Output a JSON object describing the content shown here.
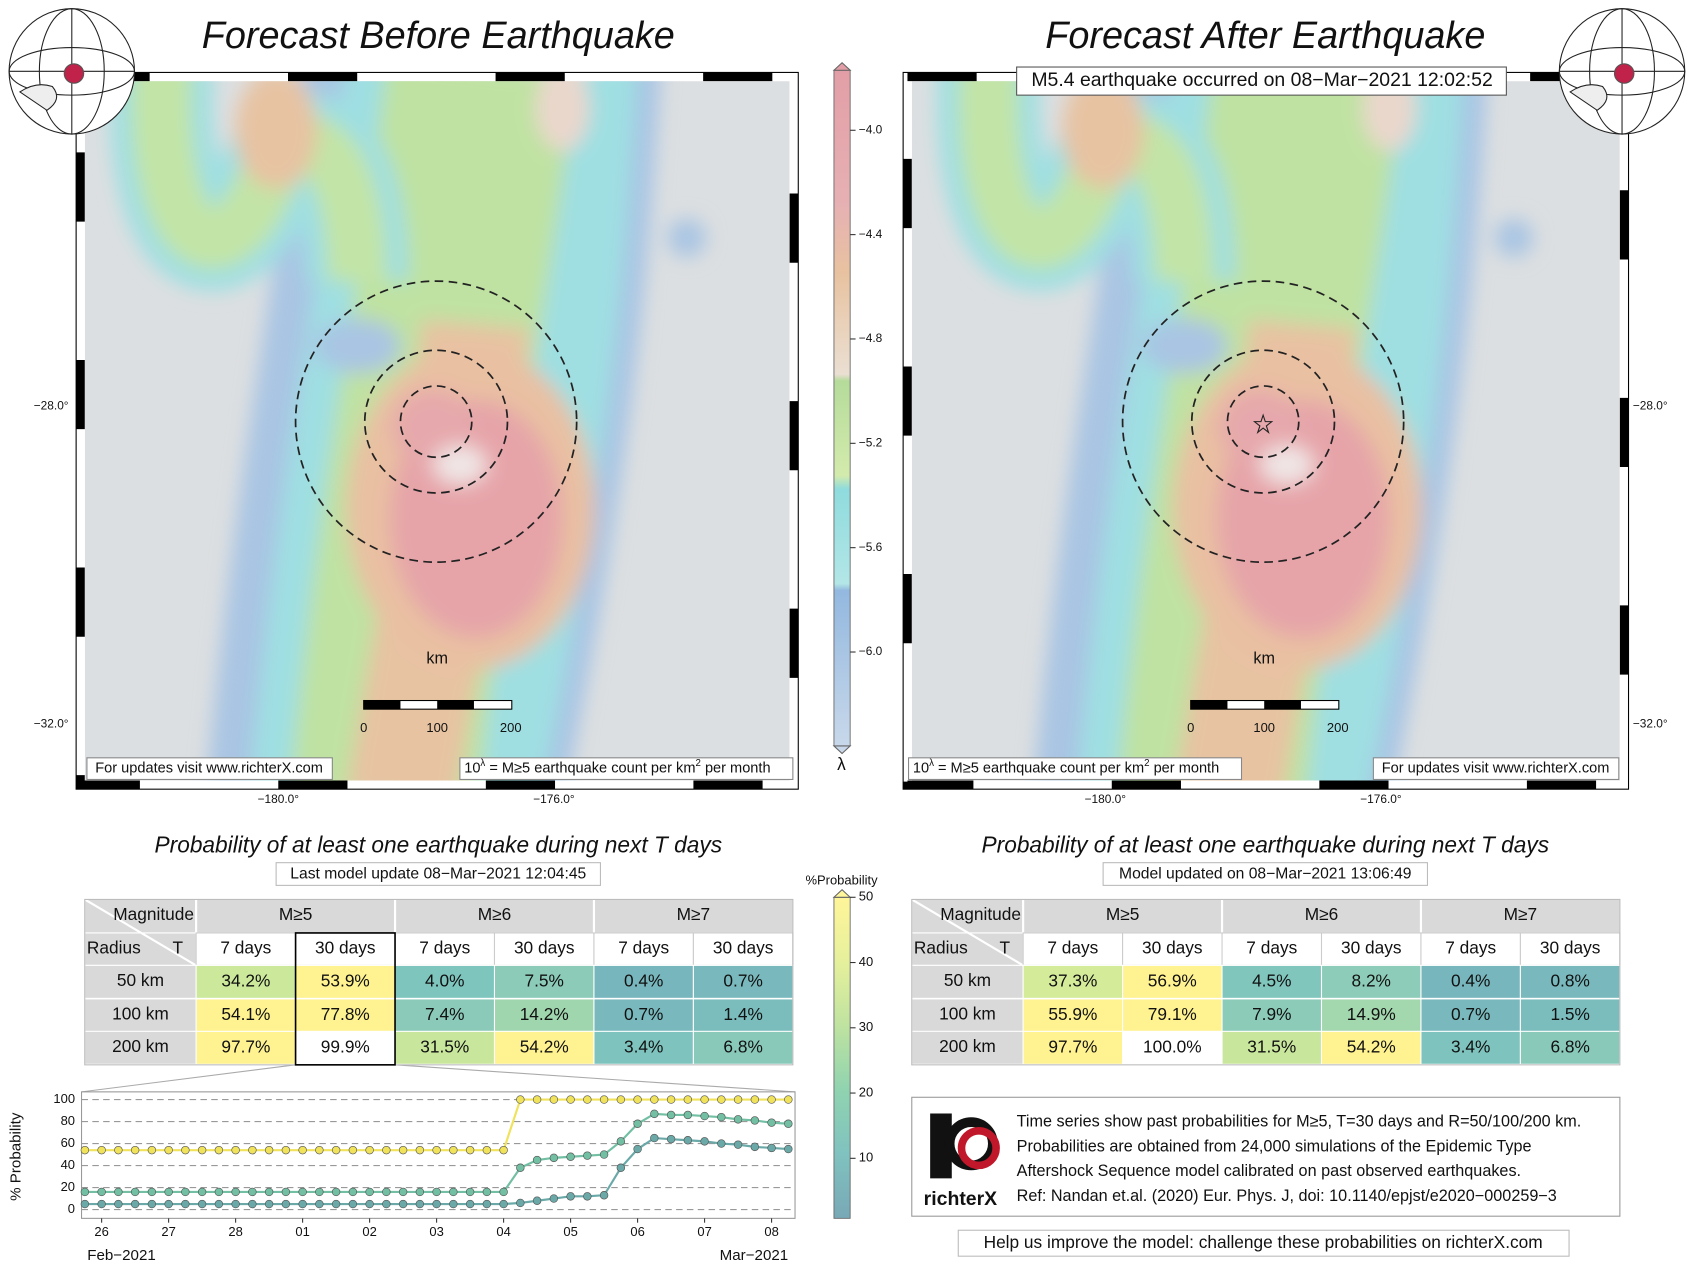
{
  "before": {
    "title": "Forecast Before Earthquake",
    "lat_labels": [
      "−28.0°",
      "−32.0°"
    ],
    "lon_labels": [
      "−180.0°",
      "−176.0°"
    ],
    "scale_unit": "km",
    "scale_labels": [
      "0",
      "100",
      "200"
    ],
    "credit": "For updates visit www.richterX.com",
    "legend": [
      "10",
      "λ",
      " = M≥5 earthquake count per km",
      "2",
      " per month"
    ]
  },
  "after": {
    "title": "Forecast After Earthquake",
    "event": "M5.4 earthquake occurred on 08−Mar−2021 12:02:52",
    "lat_labels": [
      "−28.0°",
      "−32.0°"
    ],
    "lon_labels": [
      "−180.0°",
      "−176.0°"
    ],
    "scale_unit": "km",
    "scale_labels": [
      "0",
      "100",
      "200"
    ],
    "credit": "For updates visit www.richterX.com",
    "legend": [
      "10",
      "λ",
      " = M≥5 earthquake count per km",
      "2",
      " per month"
    ]
  },
  "colorbar": {
    "label": "λ",
    "lim": [
      -6.36,
      -3.77
    ],
    "ticks": [
      {
        "value": -4.0,
        "label": "−4.0"
      },
      {
        "value": -4.4,
        "label": "−4.4"
      },
      {
        "value": -4.8,
        "label": "−4.8"
      },
      {
        "value": -5.2,
        "label": "−5.2"
      },
      {
        "value": -5.6,
        "label": "−5.6"
      },
      {
        "value": -6.0,
        "label": "−6.0"
      }
    ]
  },
  "prob_colorbar": {
    "label": "%Probability",
    "lim": [
      0.8,
      50
    ],
    "ticks": [
      10,
      20,
      30,
      40,
      50
    ]
  },
  "tables": [
    {
      "title": "Probability of at least one earthquake during next T days",
      "update": "Last model update 08−Mar−2021 12:04:45",
      "corner": [
        "Magnitude",
        "Radius",
        "T"
      ],
      "magnitudes": [
        "M≥5",
        "M≥6",
        "M≥7"
      ],
      "periods": [
        "7 days",
        "30 days",
        "7 days",
        "30 days",
        "7 days",
        "30 days"
      ],
      "radii": [
        "50 km",
        "100 km",
        "200 km"
      ],
      "rows": [
        [
          "34.2%",
          "53.9%",
          "4.0%",
          "7.5%",
          "0.4%",
          "0.7%"
        ],
        [
          "54.1%",
          "77.8%",
          "7.4%",
          "14.2%",
          "0.7%",
          "1.4%"
        ],
        [
          "97.7%",
          "99.9%",
          "31.5%",
          "54.2%",
          "3.4%",
          "6.8%"
        ]
      ],
      "cell_colors": [
        [
          "#cbe89b",
          "#fff290",
          "#7ec5be",
          "#8bcbb8",
          "#78b6bd",
          "#79b9bd"
        ],
        [
          "#fff290",
          "#fff290",
          "#8bcab8",
          "#a0d6ae",
          "#79b9bd",
          "#7bbcbd"
        ],
        [
          "#fff290",
          "#ffffff",
          "#c8e79d",
          "#fff290",
          "#7ec3be",
          "#89c9ba"
        ]
      ]
    },
    {
      "title": "Probability of at least one earthquake during next T days",
      "update": "Model updated on 08−Mar−2021 13:06:49",
      "corner": [
        "Magnitude",
        "Radius",
        "T"
      ],
      "magnitudes": [
        "M≥5",
        "M≥6",
        "M≥7"
      ],
      "periods": [
        "7 days",
        "30 days",
        "7 days",
        "30 days",
        "7 days",
        "30 days"
      ],
      "radii": [
        "50 km",
        "100 km",
        "200 km"
      ],
      "rows": [
        [
          "37.3%",
          "56.9%",
          "4.5%",
          "8.2%",
          "0.4%",
          "0.8%"
        ],
        [
          "55.9%",
          "79.1%",
          "7.9%",
          "14.9%",
          "0.7%",
          "1.5%"
        ],
        [
          "97.7%",
          "100.0%",
          "31.5%",
          "54.2%",
          "3.4%",
          "6.8%"
        ]
      ],
      "cell_colors": [
        [
          "#d4eb9a",
          "#fff290",
          "#80c6bd",
          "#8dccb8",
          "#78b6bd",
          "#79b9bd"
        ],
        [
          "#fff290",
          "#fff290",
          "#8ccbb8",
          "#a3d7ae",
          "#79b9bd",
          "#7bbcbd"
        ],
        [
          "#fff290",
          "#ffffff",
          "#c8e79d",
          "#fff290",
          "#7ec3be",
          "#89c9ba"
        ]
      ]
    }
  ],
  "chart_data": {
    "type": "line",
    "ylabel": "% Probability",
    "xlabel_left": "Feb−2021",
    "xlabel_right": "Mar−2021",
    "grid": true,
    "x": [
      25.75,
      26,
      26.25,
      26.5,
      26.75,
      27,
      27.25,
      27.5,
      27.75,
      28,
      28.25,
      28.5,
      28.75,
      29,
      29.25,
      29.5,
      29.75,
      30,
      30.25,
      30.5,
      30.75,
      31,
      31.25,
      31.5,
      31.75,
      32,
      32.25,
      32.5,
      32.75,
      33,
      33.25,
      33.5,
      33.75,
      34,
      34.25,
      34.5,
      34.75,
      35,
      35.25,
      35.5,
      35.75,
      36,
      36.25
    ],
    "xlim": [
      25.7,
      36.35
    ],
    "xticks": [
      26,
      27,
      28,
      {
        "value": 29,
        "label": "01"
      },
      {
        "value": 30,
        "label": "02"
      },
      {
        "value": 31,
        "label": "03"
      },
      {
        "value": 32,
        "label": "04"
      },
      {
        "value": 33,
        "label": "05"
      },
      {
        "value": 34,
        "label": "06"
      },
      {
        "value": 35,
        "label": "07"
      },
      {
        "value": 36,
        "label": "08"
      }
    ],
    "ylim": [
      -8,
      107
    ],
    "yticks": [
      0,
      20,
      40,
      60,
      80,
      100
    ],
    "series": [
      {
        "color": "#f0e25a",
        "values": [
          54,
          54,
          54,
          54,
          54,
          54,
          54,
          54,
          54,
          54,
          54,
          54,
          54,
          54,
          54,
          54,
          54,
          54,
          54,
          54,
          54,
          54,
          54,
          54,
          54,
          54,
          100,
          100,
          100,
          100,
          100,
          100,
          100,
          100,
          100,
          100,
          100,
          100,
          100,
          100,
          100,
          100,
          100
        ]
      },
      {
        "color": "#72bfa3",
        "values": [
          16,
          16,
          16,
          16,
          16,
          16,
          16,
          16,
          16,
          16,
          16,
          16,
          16,
          16,
          16,
          16,
          16,
          16,
          16,
          16,
          16,
          16,
          16,
          16,
          16,
          16,
          38,
          45,
          47,
          48,
          49,
          50,
          62,
          78,
          87,
          86,
          86,
          85,
          84,
          82,
          81,
          79,
          78
        ]
      },
      {
        "color": "#6aa9a8",
        "values": [
          5,
          5,
          5,
          5,
          5,
          5,
          5,
          5,
          5,
          5,
          5,
          5,
          5,
          5,
          5,
          5,
          5,
          5,
          5,
          5,
          5,
          5,
          5,
          5,
          5,
          5,
          6,
          8,
          10,
          12,
          12,
          13,
          38,
          55,
          65,
          64,
          63,
          62,
          60,
          59,
          57,
          56,
          55
        ]
      }
    ]
  },
  "info": {
    "logo": "richterX",
    "lines": [
      "Time series show past probabilities for M≥5, T=30 days and R=50/100/200 km.",
      "Probabilities are obtained from 24,000 simulations of the Epidemic Type",
      "Aftershock Sequence model calibrated on past observed earthquakes.",
      "Ref: Nandan et.al. (2020) Eur. Phys. J, doi: 10.1140/epjst/e2020−000259−3"
    ],
    "help": "Help us improve the model: challenge these probabilities on richterX.com"
  }
}
